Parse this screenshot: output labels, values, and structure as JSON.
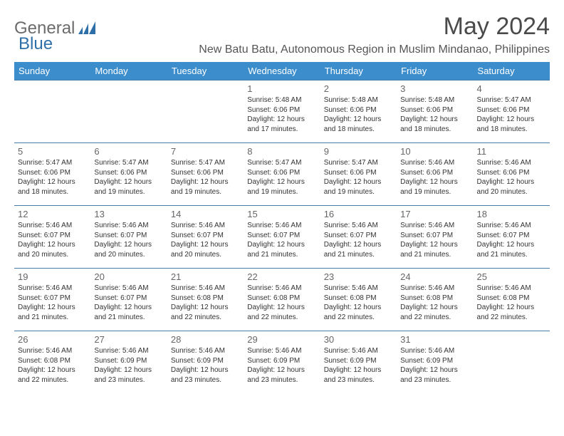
{
  "logo": {
    "text1": "General",
    "text2": "Blue"
  },
  "title": "May 2024",
  "location": "New Batu Batu, Autonomous Region in Muslim Mindanao, Philippines",
  "colors": {
    "header_bg": "#3c8dcc",
    "header_text": "#ffffff",
    "row_border": "#4a7ba8",
    "logo_gray": "#6b6b6b",
    "logo_blue": "#2f6fa8"
  },
  "weekdays": [
    "Sunday",
    "Monday",
    "Tuesday",
    "Wednesday",
    "Thursday",
    "Friday",
    "Saturday"
  ],
  "weeks": [
    [
      null,
      null,
      null,
      {
        "n": "1",
        "sr": "Sunrise: 5:48 AM",
        "ss": "Sunset: 6:06 PM",
        "d1": "Daylight: 12 hours",
        "d2": "and 17 minutes."
      },
      {
        "n": "2",
        "sr": "Sunrise: 5:48 AM",
        "ss": "Sunset: 6:06 PM",
        "d1": "Daylight: 12 hours",
        "d2": "and 18 minutes."
      },
      {
        "n": "3",
        "sr": "Sunrise: 5:48 AM",
        "ss": "Sunset: 6:06 PM",
        "d1": "Daylight: 12 hours",
        "d2": "and 18 minutes."
      },
      {
        "n": "4",
        "sr": "Sunrise: 5:47 AM",
        "ss": "Sunset: 6:06 PM",
        "d1": "Daylight: 12 hours",
        "d2": "and 18 minutes."
      }
    ],
    [
      {
        "n": "5",
        "sr": "Sunrise: 5:47 AM",
        "ss": "Sunset: 6:06 PM",
        "d1": "Daylight: 12 hours",
        "d2": "and 18 minutes."
      },
      {
        "n": "6",
        "sr": "Sunrise: 5:47 AM",
        "ss": "Sunset: 6:06 PM",
        "d1": "Daylight: 12 hours",
        "d2": "and 19 minutes."
      },
      {
        "n": "7",
        "sr": "Sunrise: 5:47 AM",
        "ss": "Sunset: 6:06 PM",
        "d1": "Daylight: 12 hours",
        "d2": "and 19 minutes."
      },
      {
        "n": "8",
        "sr": "Sunrise: 5:47 AM",
        "ss": "Sunset: 6:06 PM",
        "d1": "Daylight: 12 hours",
        "d2": "and 19 minutes."
      },
      {
        "n": "9",
        "sr": "Sunrise: 5:47 AM",
        "ss": "Sunset: 6:06 PM",
        "d1": "Daylight: 12 hours",
        "d2": "and 19 minutes."
      },
      {
        "n": "10",
        "sr": "Sunrise: 5:46 AM",
        "ss": "Sunset: 6:06 PM",
        "d1": "Daylight: 12 hours",
        "d2": "and 19 minutes."
      },
      {
        "n": "11",
        "sr": "Sunrise: 5:46 AM",
        "ss": "Sunset: 6:06 PM",
        "d1": "Daylight: 12 hours",
        "d2": "and 20 minutes."
      }
    ],
    [
      {
        "n": "12",
        "sr": "Sunrise: 5:46 AM",
        "ss": "Sunset: 6:07 PM",
        "d1": "Daylight: 12 hours",
        "d2": "and 20 minutes."
      },
      {
        "n": "13",
        "sr": "Sunrise: 5:46 AM",
        "ss": "Sunset: 6:07 PM",
        "d1": "Daylight: 12 hours",
        "d2": "and 20 minutes."
      },
      {
        "n": "14",
        "sr": "Sunrise: 5:46 AM",
        "ss": "Sunset: 6:07 PM",
        "d1": "Daylight: 12 hours",
        "d2": "and 20 minutes."
      },
      {
        "n": "15",
        "sr": "Sunrise: 5:46 AM",
        "ss": "Sunset: 6:07 PM",
        "d1": "Daylight: 12 hours",
        "d2": "and 21 minutes."
      },
      {
        "n": "16",
        "sr": "Sunrise: 5:46 AM",
        "ss": "Sunset: 6:07 PM",
        "d1": "Daylight: 12 hours",
        "d2": "and 21 minutes."
      },
      {
        "n": "17",
        "sr": "Sunrise: 5:46 AM",
        "ss": "Sunset: 6:07 PM",
        "d1": "Daylight: 12 hours",
        "d2": "and 21 minutes."
      },
      {
        "n": "18",
        "sr": "Sunrise: 5:46 AM",
        "ss": "Sunset: 6:07 PM",
        "d1": "Daylight: 12 hours",
        "d2": "and 21 minutes."
      }
    ],
    [
      {
        "n": "19",
        "sr": "Sunrise: 5:46 AM",
        "ss": "Sunset: 6:07 PM",
        "d1": "Daylight: 12 hours",
        "d2": "and 21 minutes."
      },
      {
        "n": "20",
        "sr": "Sunrise: 5:46 AM",
        "ss": "Sunset: 6:07 PM",
        "d1": "Daylight: 12 hours",
        "d2": "and 21 minutes."
      },
      {
        "n": "21",
        "sr": "Sunrise: 5:46 AM",
        "ss": "Sunset: 6:08 PM",
        "d1": "Daylight: 12 hours",
        "d2": "and 22 minutes."
      },
      {
        "n": "22",
        "sr": "Sunrise: 5:46 AM",
        "ss": "Sunset: 6:08 PM",
        "d1": "Daylight: 12 hours",
        "d2": "and 22 minutes."
      },
      {
        "n": "23",
        "sr": "Sunrise: 5:46 AM",
        "ss": "Sunset: 6:08 PM",
        "d1": "Daylight: 12 hours",
        "d2": "and 22 minutes."
      },
      {
        "n": "24",
        "sr": "Sunrise: 5:46 AM",
        "ss": "Sunset: 6:08 PM",
        "d1": "Daylight: 12 hours",
        "d2": "and 22 minutes."
      },
      {
        "n": "25",
        "sr": "Sunrise: 5:46 AM",
        "ss": "Sunset: 6:08 PM",
        "d1": "Daylight: 12 hours",
        "d2": "and 22 minutes."
      }
    ],
    [
      {
        "n": "26",
        "sr": "Sunrise: 5:46 AM",
        "ss": "Sunset: 6:08 PM",
        "d1": "Daylight: 12 hours",
        "d2": "and 22 minutes."
      },
      {
        "n": "27",
        "sr": "Sunrise: 5:46 AM",
        "ss": "Sunset: 6:09 PM",
        "d1": "Daylight: 12 hours",
        "d2": "and 23 minutes."
      },
      {
        "n": "28",
        "sr": "Sunrise: 5:46 AM",
        "ss": "Sunset: 6:09 PM",
        "d1": "Daylight: 12 hours",
        "d2": "and 23 minutes."
      },
      {
        "n": "29",
        "sr": "Sunrise: 5:46 AM",
        "ss": "Sunset: 6:09 PM",
        "d1": "Daylight: 12 hours",
        "d2": "and 23 minutes."
      },
      {
        "n": "30",
        "sr": "Sunrise: 5:46 AM",
        "ss": "Sunset: 6:09 PM",
        "d1": "Daylight: 12 hours",
        "d2": "and 23 minutes."
      },
      {
        "n": "31",
        "sr": "Sunrise: 5:46 AM",
        "ss": "Sunset: 6:09 PM",
        "d1": "Daylight: 12 hours",
        "d2": "and 23 minutes."
      },
      null
    ]
  ]
}
